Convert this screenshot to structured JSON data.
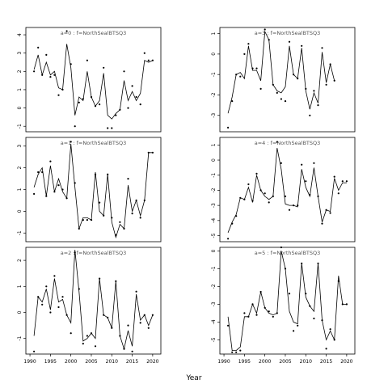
{
  "xlabel": "Year",
  "colors": {
    "line": "#000000",
    "points": "#000000",
    "frame": "#000000",
    "background": "#ffffff"
  },
  "chart_data": [
    {
      "type": "line+scatter",
      "title": "a=0 : f=NorthSealBTSQ3",
      "position": "top-left",
      "xlim": [
        1989,
        2022
      ],
      "ylim": [
        -1.3,
        4.4
      ],
      "xticks": [
        1990,
        1995,
        2000,
        2005,
        2010,
        2015,
        2020
      ],
      "yticks": [
        -1,
        0,
        1,
        2,
        3,
        4
      ],
      "show_xticks": false,
      "years": [
        1991,
        1992,
        1993,
        1994,
        1995,
        1996,
        1997,
        1998,
        1999,
        2000,
        2001,
        2002,
        2003,
        2004,
        2005,
        2006,
        2007,
        2008,
        2009,
        2010,
        2011,
        2012,
        2013,
        2014,
        2015,
        2016,
        2017,
        2018,
        2019,
        2020
      ],
      "fit": [
        2.1,
        2.9,
        1.8,
        2.5,
        1.8,
        2.0,
        1.1,
        1.0,
        3.5,
        2.2,
        -0.4,
        0.6,
        0.4,
        2.0,
        0.6,
        0.1,
        0.4,
        1.9,
        -0.4,
        -0.6,
        -0.3,
        -0.1,
        1.5,
        0.4,
        0.9,
        0.4,
        0.8,
        2.6,
        2.5,
        2.6
      ],
      "obs": [
        2.0,
        3.3,
        1.8,
        2.9,
        1.7,
        1.8,
        0.7,
        1.0,
        4.2,
        2.4,
        -1.0,
        0.3,
        0.5,
        2.6,
        0.6,
        0.1,
        0.2,
        2.2,
        -1.1,
        -1.1,
        -0.4,
        -0.1,
        2.0,
        0.0,
        1.2,
        0.6,
        0.2,
        3.0,
        2.6,
        2.6
      ]
    },
    {
      "type": "line+scatter",
      "title": "a=3 : f=NorthSealBTSQ3",
      "position": "top-right",
      "xlim": [
        1989,
        2022
      ],
      "ylim": [
        -3.8,
        1.3
      ],
      "xticks": [
        1990,
        1995,
        2000,
        2005,
        2010,
        2015,
        2020
      ],
      "yticks": [
        -3,
        -2,
        -1,
        0,
        1
      ],
      "show_xticks": false,
      "years": [
        1991,
        1992,
        1993,
        1994,
        1995,
        1996,
        1997,
        1998,
        1999,
        2000,
        2001,
        2002,
        2003,
        2004,
        2005,
        2006,
        2007,
        2008,
        2009,
        2010,
        2011,
        2012,
        2013,
        2014,
        2015,
        2016,
        2017,
        2018,
        2019,
        2020
      ],
      "fit": [
        -2.9,
        -2.1,
        -1.0,
        -0.9,
        -1.2,
        0.4,
        -0.8,
        -0.8,
        -1.3,
        1.1,
        0.7,
        -1.5,
        -1.8,
        -1.9,
        -1.6,
        0.4,
        -1.0,
        -1.2,
        0.3,
        -1.8,
        -2.7,
        -1.9,
        -2.4,
        0.1,
        -1.4,
        -0.5,
        -1.3
      ],
      "obs": [
        -3.6,
        -2.3,
        -1.0,
        -1.1,
        0.0,
        0.5,
        -0.7,
        -0.7,
        -1.7,
        1.2,
        0.7,
        -1.5,
        -1.9,
        -2.2,
        -2.3,
        0.6,
        -1.0,
        -1.2,
        0.4,
        -1.7,
        -3.0,
        -1.8,
        -2.5,
        0.3,
        -1.5,
        -0.5,
        -1.3
      ],
      "obs_years": [
        1991,
        1992,
        1993,
        1994,
        1995,
        1996,
        1997,
        1998,
        1999,
        2000,
        2001,
        2002,
        2003,
        2004,
        2005,
        2006,
        2007,
        2008,
        2009,
        2010,
        2011,
        2012,
        2013,
        2014,
        2015,
        2016,
        2017
      ],
      "fit_years": [
        1991,
        1992,
        1993,
        1994,
        1995,
        1996,
        1997,
        1998,
        1999,
        2000,
        2001,
        2002,
        2003,
        2004,
        2005,
        2006,
        2007,
        2008,
        2009,
        2010,
        2011,
        2012,
        2013,
        2014,
        2015,
        2016,
        2017
      ]
    },
    {
      "type": "line+scatter",
      "title": "a=1 : f=NorthSealBTSQ3",
      "position": "middle-left",
      "xlim": [
        1989,
        2022
      ],
      "ylim": [
        -1.4,
        3.4
      ],
      "xticks": [
        1990,
        1995,
        2000,
        2005,
        2010,
        2015,
        2020
      ],
      "yticks": [
        -1,
        0,
        1,
        2,
        3
      ],
      "show_xticks": false,
      "years": [
        1991,
        1992,
        1993,
        1994,
        1995,
        1996,
        1997,
        1998,
        1999,
        2000,
        2001,
        2002,
        2003,
        2004,
        2005,
        2006,
        2007,
        2008,
        2009,
        2010,
        2011,
        2012,
        2013,
        2014,
        2015,
        2016,
        2017,
        2018,
        2019,
        2020
      ],
      "fit": [
        1.1,
        1.7,
        2.0,
        0.7,
        2.1,
        0.9,
        1.5,
        0.9,
        0.6,
        3.1,
        1.1,
        -0.8,
        -0.3,
        -0.3,
        -0.4,
        1.8,
        0.0,
        -0.2,
        1.7,
        -0.5,
        -1.2,
        -0.6,
        -0.8,
        1.2,
        0.0,
        0.5,
        -0.2,
        0.5,
        2.7,
        2.7
      ],
      "obs": [
        0.8,
        1.8,
        1.8,
        0.7,
        2.3,
        0.9,
        1.2,
        1.0,
        0.6,
        3.2,
        1.3,
        -0.8,
        -0.4,
        -0.4,
        -0.4,
        1.7,
        0.4,
        -0.2,
        1.7,
        -0.3,
        -1.1,
        -0.5,
        -0.8,
        1.5,
        -0.1,
        0.5,
        -0.3,
        0.5,
        2.7,
        2.7
      ]
    },
    {
      "type": "line+scatter",
      "title": "a=4 : f=NorthSealBTSQ3",
      "position": "middle-right",
      "xlim": [
        1989,
        2022
      ],
      "ylim": [
        -5.4,
        1.5
      ],
      "xticks": [
        1990,
        1995,
        2000,
        2005,
        2010,
        2015,
        2020
      ],
      "yticks": [
        -5,
        -4,
        -3,
        -2,
        -1,
        0,
        1
      ],
      "show_xticks": false,
      "years": [
        1991,
        1992,
        1993,
        1994,
        1995,
        1996,
        1997,
        1998,
        1999,
        2000,
        2001,
        2002,
        2003,
        2004,
        2005,
        2006,
        2007,
        2008,
        2009,
        2010,
        2011,
        2012,
        2013,
        2014,
        2015,
        2016,
        2017,
        2018,
        2019,
        2020
      ],
      "fit": [
        -4.8,
        -4.1,
        -3.6,
        -2.5,
        -2.6,
        -1.8,
        -2.8,
        -1.0,
        -2.0,
        -2.4,
        -2.6,
        -2.4,
        0.8,
        -0.6,
        -2.9,
        -3.0,
        -3.0,
        -3.1,
        -0.6,
        -1.8,
        -2.4,
        -0.5,
        -2.4,
        -4.1,
        -3.3,
        -3.4,
        -1.2,
        -2.0,
        -1.5,
        -1.5
      ],
      "obs": [
        -5.2,
        -4.2,
        -3.7,
        -2.5,
        -2.6,
        -1.6,
        -2.7,
        -0.9,
        -2.0,
        -2.2,
        -2.8,
        -2.4,
        1.2,
        -0.2,
        -2.4,
        -3.3,
        -3.0,
        -3.0,
        -0.3,
        -1.4,
        -2.3,
        -0.2,
        -2.4,
        -4.2,
        -3.3,
        -3.5,
        -1.1,
        -2.2,
        -1.4,
        -1.4
      ]
    },
    {
      "type": "line+scatter",
      "title": "a=2 : f=NorthSealBTSQ3",
      "position": "bottom-left",
      "xlim": [
        1989,
        2022
      ],
      "ylim": [
        -1.6,
        2.5
      ],
      "xticks": [
        1990,
        1995,
        2000,
        2005,
        2010,
        2015,
        2020
      ],
      "yticks": [
        -1,
        0,
        1,
        2
      ],
      "show_xticks": true,
      "years": [
        1991,
        1992,
        1993,
        1994,
        1995,
        1996,
        1997,
        1998,
        1999,
        2000,
        2001,
        2002,
        2003,
        2004,
        2005,
        2006,
        2007,
        2008,
        2009,
        2010,
        2011,
        2012,
        2013,
        2014,
        2015,
        2016,
        2017,
        2018,
        2019,
        2020
      ],
      "fit": [
        -0.9,
        0.6,
        0.4,
        0.9,
        0.1,
        1.3,
        0.4,
        0.5,
        -0.1,
        -0.4,
        2.4,
        0.8,
        -1.1,
        -1.0,
        -0.8,
        -1.0,
        1.3,
        -0.1,
        -0.2,
        -0.6,
        1.2,
        -0.9,
        -1.4,
        -0.7,
        -1.3,
        0.7,
        -0.3,
        -0.1,
        -0.5,
        -0.1
      ],
      "obs": [
        -1.5,
        0.6,
        0.3,
        1.0,
        0.0,
        1.4,
        0.2,
        0.6,
        -0.1,
        -0.8,
        2.3,
        0.9,
        -1.2,
        -0.9,
        -0.8,
        -1.3,
        1.3,
        -0.1,
        -0.2,
        -0.6,
        1.2,
        -0.9,
        -1.4,
        -0.5,
        -1.5,
        0.8,
        -0.4,
        -0.1,
        -0.6,
        -0.1
      ]
    },
    {
      "type": "line+scatter",
      "title": "a=5 : f=NorthSealBTSQ3",
      "position": "bottom-right",
      "xlim": [
        1989,
        2022
      ],
      "ylim": [
        -5.8,
        0.2
      ],
      "xticks": [
        1990,
        1995,
        2000,
        2005,
        2010,
        2015,
        2020
      ],
      "yticks": [
        -5,
        -4,
        -3,
        -2,
        -1,
        0
      ],
      "show_xticks": true,
      "years": [
        1991,
        1992,
        1993,
        1994,
        1995,
        1996,
        1997,
        1998,
        1999,
        2000,
        2001,
        2002,
        2003,
        2004,
        2005,
        2006,
        2007,
        2008,
        2009,
        2010,
        2011,
        2012,
        2013,
        2014,
        2015,
        2016,
        2017,
        2018,
        2019,
        2020
      ],
      "fit": [
        -3.7,
        -5.6,
        -5.6,
        -5.4,
        -3.7,
        -3.7,
        -3.0,
        -3.5,
        -2.3,
        -3.2,
        -3.5,
        -3.6,
        -3.5,
        0.0,
        -1.0,
        -3.4,
        -4.0,
        -4.1,
        -0.7,
        -2.6,
        -3.1,
        -3.4,
        -0.7,
        -3.9,
        -5.0,
        -4.5,
        -5.0,
        -1.4,
        -3.0,
        -3.0
      ],
      "obs": [
        -4.2,
        -5.7,
        -5.7,
        -5.6,
        -3.5,
        -3.7,
        -3.0,
        -3.6,
        -2.3,
        -3.2,
        -3.4,
        -3.7,
        -3.5,
        0.2,
        -1.0,
        -2.4,
        -4.5,
        -4.2,
        -0.7,
        -2.4,
        -3.1,
        -3.8,
        -0.7,
        -3.9,
        -5.5,
        -4.4,
        -5.0,
        -1.7,
        -3.0,
        -3.0
      ]
    }
  ]
}
